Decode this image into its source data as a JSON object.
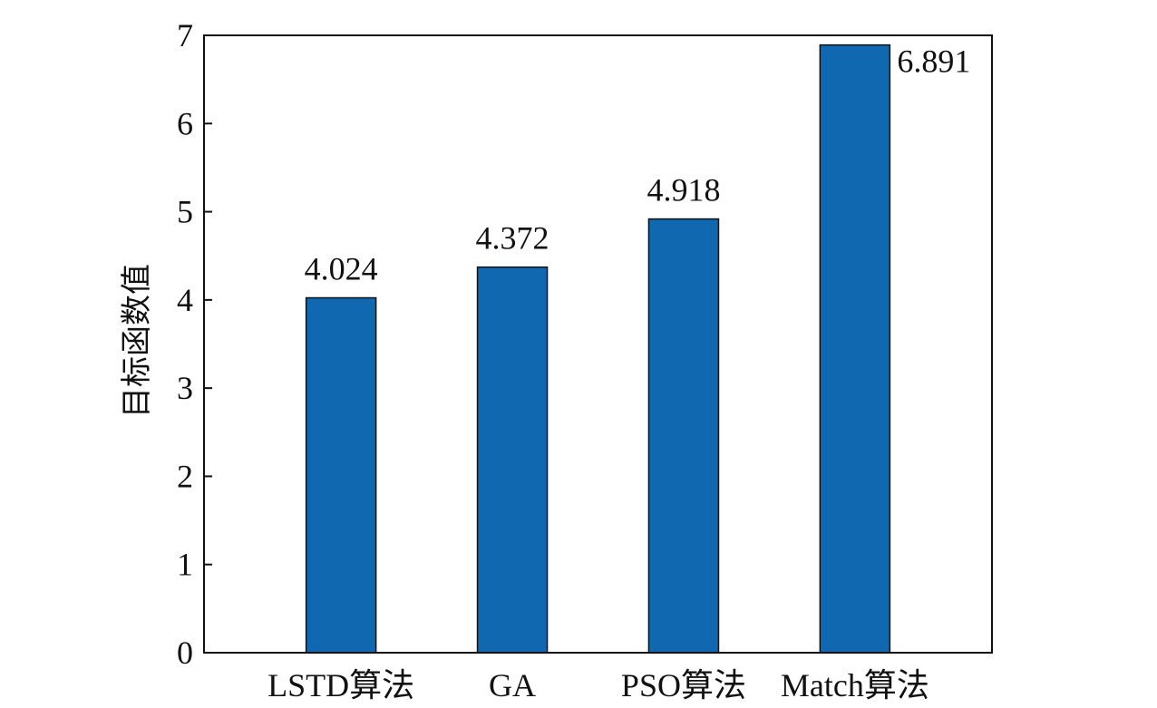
{
  "chart_data": {
    "type": "bar",
    "categories": [
      "LSTD算法",
      "GA",
      "PSO算法",
      "Match算法"
    ],
    "values": [
      4.024,
      4.372,
      4.918,
      6.891
    ],
    "data_labels": [
      "4.024",
      "4.372",
      "4.918",
      "6.891"
    ],
    "title": "",
    "xlabel": "",
    "ylabel": "目标函数值",
    "ylim": [
      0,
      7
    ],
    "yticks": [
      0,
      1,
      2,
      3,
      4,
      5,
      6,
      7
    ],
    "grid": false,
    "bar_color": "#1068b0",
    "bar_edge_color": "#111111"
  }
}
